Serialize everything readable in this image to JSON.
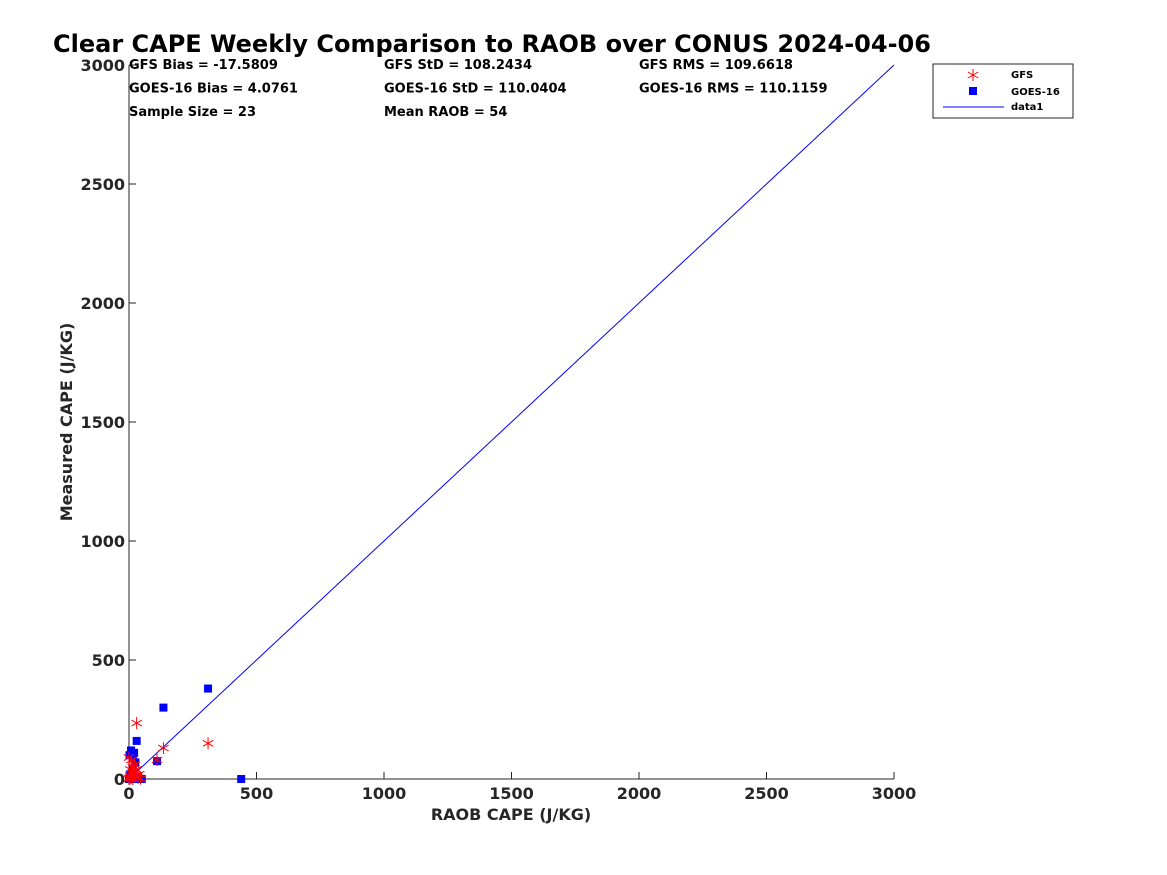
{
  "chart_data": {
    "type": "scatter",
    "title": "Clear CAPE Weekly Comparison to RAOB over CONUS 2024-04-06",
    "xlabel": "RAOB CAPE (J/KG)",
    "ylabel": "Measured CAPE (J/KG)",
    "xlim": [
      0,
      3000
    ],
    "ylim": [
      0,
      3000
    ],
    "xticks": [
      "0",
      "500",
      "1000",
      "1500",
      "2000",
      "2500",
      "3000"
    ],
    "yticks": [
      "0",
      "500",
      "1000",
      "1500",
      "2000",
      "2500",
      "3000"
    ],
    "grid": false,
    "legend_position": "top-right",
    "stats": [
      [
        "GFS Bias = -17.5809",
        "GFS StD = 108.2434",
        "GFS RMS = 109.6618"
      ],
      [
        "GOES-16 Bias = 4.0761",
        "GOES-16 StD = 110.0404",
        "GOES-16 RMS = 110.1159"
      ],
      [
        "Sample Size = 23",
        "Mean RAOB = 54",
        ""
      ]
    ],
    "series": [
      {
        "name": "GFS",
        "marker": "asterisk",
        "color": "#ff0000",
        "points": [
          [
            0,
            0
          ],
          [
            2,
            5
          ],
          [
            3,
            2
          ],
          [
            5,
            10
          ],
          [
            8,
            3
          ],
          [
            10,
            80
          ],
          [
            12,
            20
          ],
          [
            15,
            50
          ],
          [
            18,
            30
          ],
          [
            20,
            15
          ],
          [
            22,
            60
          ],
          [
            25,
            10
          ],
          [
            28,
            40
          ],
          [
            30,
            235
          ],
          [
            35,
            5
          ],
          [
            40,
            20
          ],
          [
            45,
            2
          ],
          [
            110,
            80
          ],
          [
            135,
            130
          ],
          [
            310,
            150
          ],
          [
            0,
            90
          ],
          [
            5,
            40
          ],
          [
            15,
            0
          ]
        ]
      },
      {
        "name": "GOES-16",
        "marker": "square",
        "color": "#0000ff",
        "points": [
          [
            0,
            0
          ],
          [
            2,
            100
          ],
          [
            5,
            5
          ],
          [
            8,
            120
          ],
          [
            10,
            0
          ],
          [
            12,
            10
          ],
          [
            15,
            90
          ],
          [
            18,
            0
          ],
          [
            20,
            110
          ],
          [
            22,
            5
          ],
          [
            25,
            70
          ],
          [
            28,
            0
          ],
          [
            30,
            160
          ],
          [
            35,
            10
          ],
          [
            40,
            0
          ],
          [
            45,
            0
          ],
          [
            50,
            0
          ],
          [
            110,
            75
          ],
          [
            135,
            300
          ],
          [
            310,
            380
          ],
          [
            440,
            0
          ],
          [
            5,
            20
          ],
          [
            15,
            40
          ]
        ]
      },
      {
        "name": "data1",
        "marker": "line",
        "color": "#0000ff",
        "points": [
          [
            0,
            0
          ],
          [
            3000,
            3000
          ]
        ]
      }
    ]
  }
}
